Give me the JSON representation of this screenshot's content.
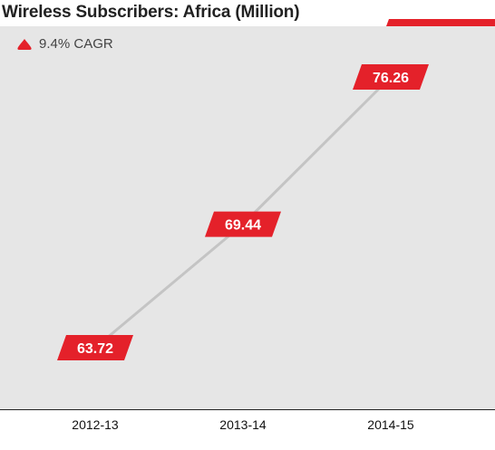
{
  "colors": {
    "accent": "#e4212a",
    "line": "#c4c4c4",
    "plot_background": "#e6e6e6",
    "label_text": "#ffffff"
  },
  "cagr": {
    "icon": "triangle-up-icon",
    "label": "9.4% CAGR"
  },
  "chart_data": {
    "type": "line",
    "title": "Wireless Subscribers: Africa (Million)",
    "xlabel": "",
    "ylabel": "",
    "categories": [
      "2012-13",
      "2013-14",
      "2014-15"
    ],
    "values": [
      63.72,
      69.44,
      76.26
    ],
    "data_labels": [
      "63.72",
      "69.44",
      "76.26"
    ],
    "grid": false,
    "legend": "none"
  }
}
